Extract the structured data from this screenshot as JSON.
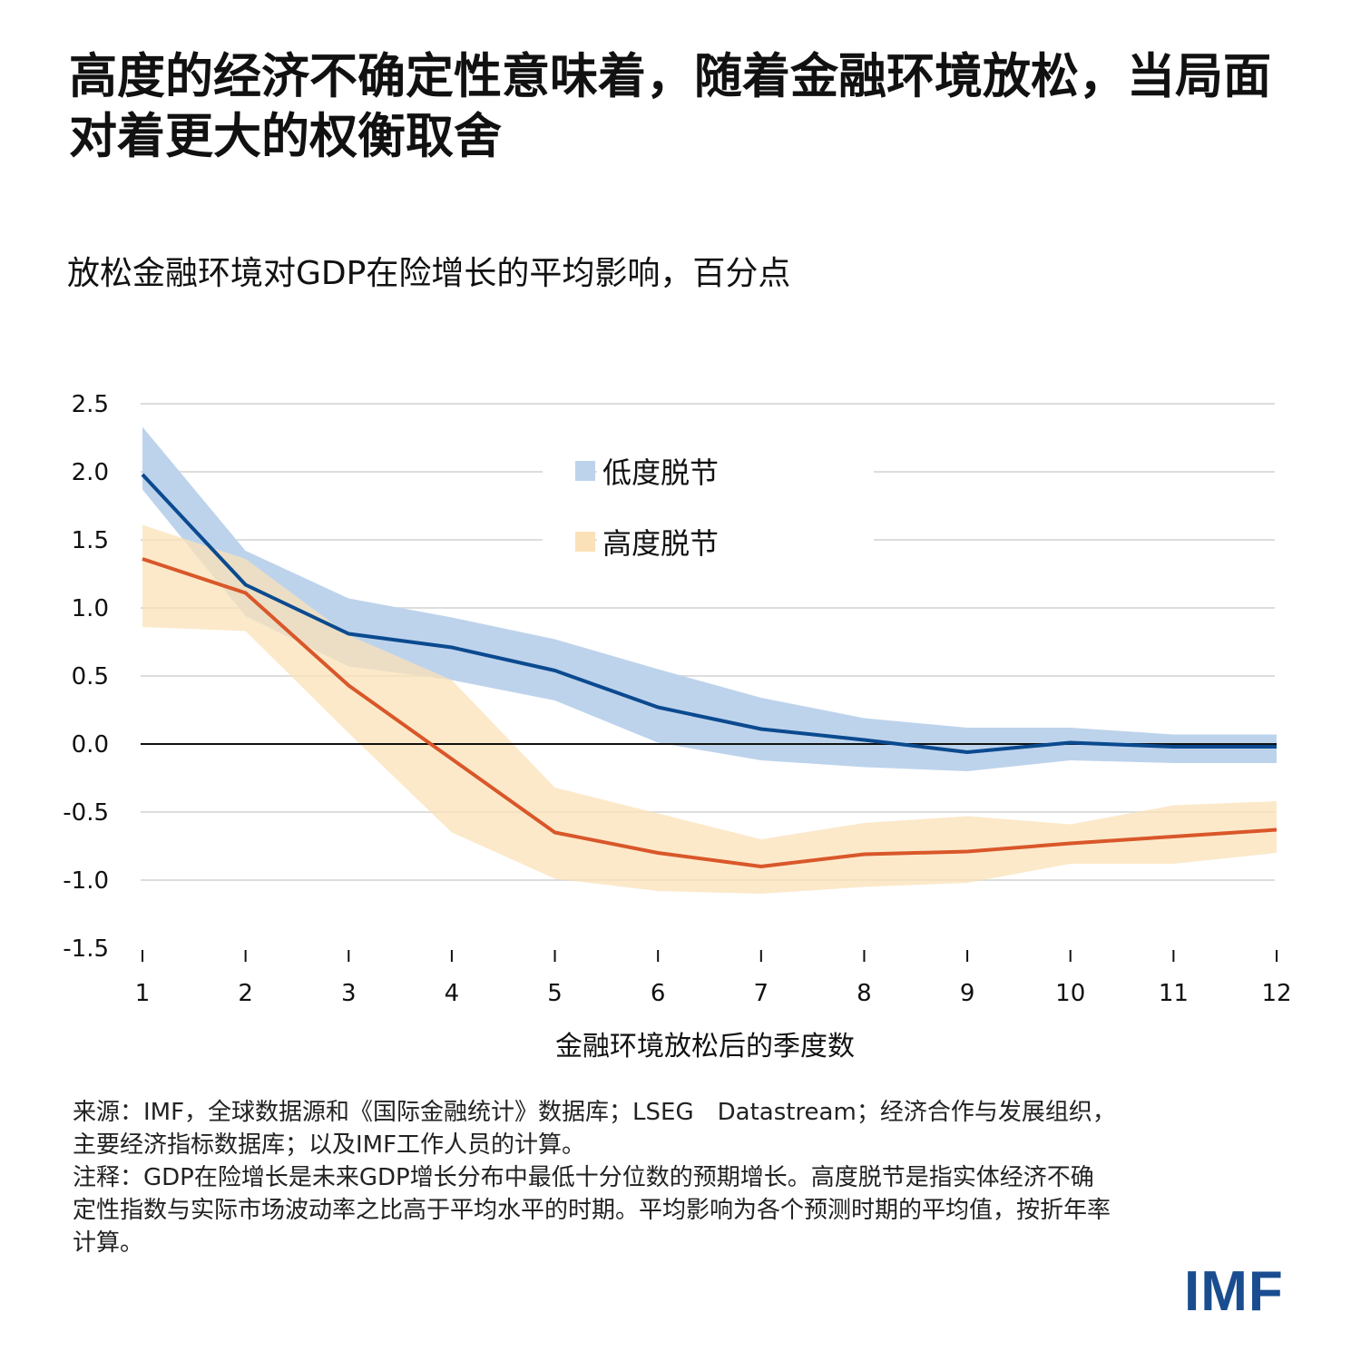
{
  "title": "高度的经济不确定性意味着，随着金融环境放松，当局面对着更大的权衡取舍",
  "subtitle": "放松金融环境对GDP在险增长的平均影响，百分点",
  "notes": {
    "source": "来源：IMF，全球数据源和《国际金融统计》数据库；LSEG　Datastream；经济合作与发展组织，主要经济指标数据库；以及IMF工作人员的计算。",
    "note": "注释：GDP在险增长是未来GDP增长分布中最低十分位数的预期增长。高度脱节是指实体经济不确定性指数与实际市场波动率之比高于平均水平的时期。平均影响为各个预测时期的平均值，按折年率计算。"
  },
  "logo": "IMF",
  "chart_data": {
    "type": "line",
    "title": "放松金融环境对GDP在险增长的平均影响，百分点",
    "xlabel": "金融环境放松后的季度数",
    "ylabel": "",
    "x": [
      1,
      2,
      3,
      4,
      5,
      6,
      7,
      8,
      9,
      10,
      11,
      12
    ],
    "xticks": [
      "1",
      "2",
      "3",
      "4",
      "5",
      "6",
      "7",
      "8",
      "9",
      "10",
      "11",
      "12"
    ],
    "ylim": [
      -1.5,
      2.5
    ],
    "yticks": [
      "2.5",
      "2.0",
      "1.5",
      "1.0",
      "0.5",
      "0.0",
      "-0.5",
      "-1.0",
      "-1.5"
    ],
    "ytick_values": [
      2.5,
      2.0,
      1.5,
      1.0,
      0.5,
      0.0,
      -0.5,
      -1.0,
      -1.5
    ],
    "grid": true,
    "legend_placement": "top-center",
    "series": [
      {
        "name": "低度脱节",
        "line_color": "#0b4a8f",
        "band_color": "#bdd3ec",
        "values": [
          1.98,
          1.17,
          0.81,
          0.71,
          0.54,
          0.27,
          0.11,
          0.03,
          -0.06,
          0.01,
          -0.02,
          -0.02
        ],
        "upper": [
          2.33,
          1.42,
          1.07,
          0.93,
          0.77,
          0.55,
          0.34,
          0.19,
          0.12,
          0.12,
          0.07,
          0.07
        ],
        "lower": [
          1.87,
          0.94,
          0.57,
          0.47,
          0.32,
          0.01,
          -0.12,
          -0.17,
          -0.2,
          -0.12,
          -0.14,
          -0.14
        ]
      },
      {
        "name": "高度脱节",
        "line_color": "#d9572a",
        "band_color": "#fbe1b8",
        "values": [
          1.36,
          1.11,
          0.43,
          -0.11,
          -0.65,
          -0.8,
          -0.9,
          -0.81,
          -0.79,
          -0.73,
          -0.68,
          -0.63
        ],
        "upper": [
          1.61,
          1.36,
          0.8,
          0.47,
          -0.32,
          -0.51,
          -0.7,
          -0.58,
          -0.53,
          -0.59,
          -0.45,
          -0.42
        ],
        "lower": [
          0.86,
          0.83,
          0.08,
          -0.65,
          -0.99,
          -1.08,
          -1.1,
          -1.05,
          -1.02,
          -0.88,
          -0.88,
          -0.8
        ]
      }
    ]
  }
}
